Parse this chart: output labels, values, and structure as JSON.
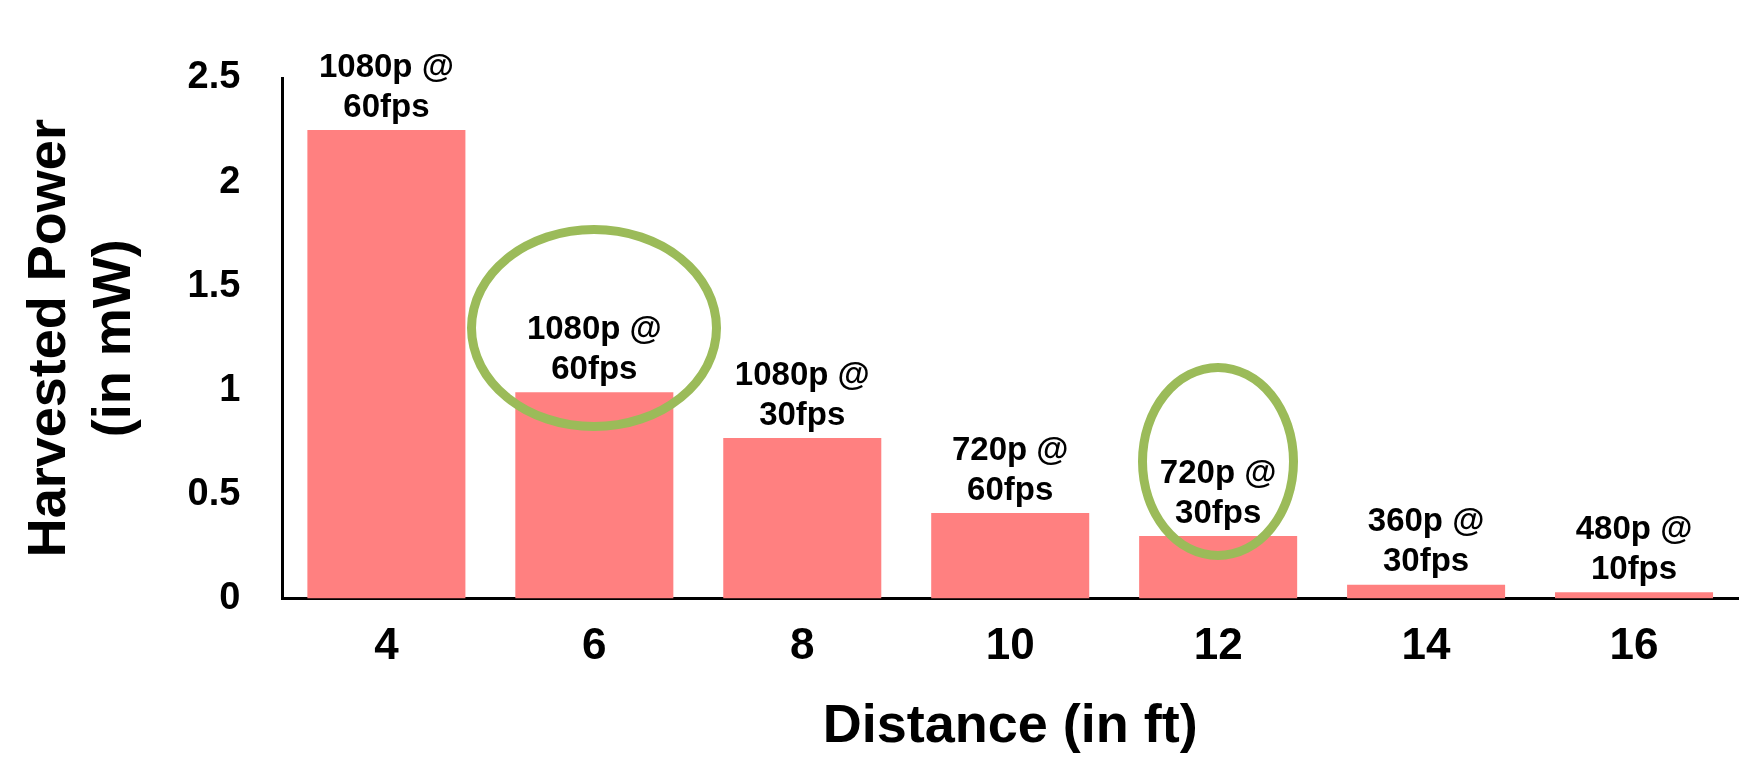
{
  "chart_data": {
    "type": "bar",
    "xlabel": "Distance (in ft)",
    "ylabel": "Harvested Power\n(in mW)",
    "categories": [
      "4",
      "6",
      "8",
      "10",
      "12",
      "14",
      "16"
    ],
    "values": [
      2.25,
      0.99,
      0.77,
      0.41,
      0.3,
      0.065,
      0.03
    ],
    "annotations": [
      {
        "text": "1080p @ 60fps",
        "x": "4",
        "y": 2.25
      },
      {
        "text": "1080p @ 60fps",
        "x": "6",
        "y": 0.99
      },
      {
        "text": "1080p @ 30fps",
        "x": "8",
        "y": 0.77
      },
      {
        "text": "720p @ 60fps",
        "x": "10",
        "y": 0.41
      },
      {
        "text": "720p @ 30fps",
        "x": "12",
        "y": 0.3
      },
      {
        "text": "360p @ 30fps",
        "x": "14",
        "y": 0.065
      },
      {
        "text": "480p @ 10fps",
        "x": "16",
        "y": 0.03
      }
    ],
    "color": "#ff8080",
    "ylim": [
      0,
      2.5
    ],
    "yticks": [
      0,
      0.5,
      1,
      1.5,
      2,
      2.5
    ],
    "grid": false,
    "legend": false
  }
}
